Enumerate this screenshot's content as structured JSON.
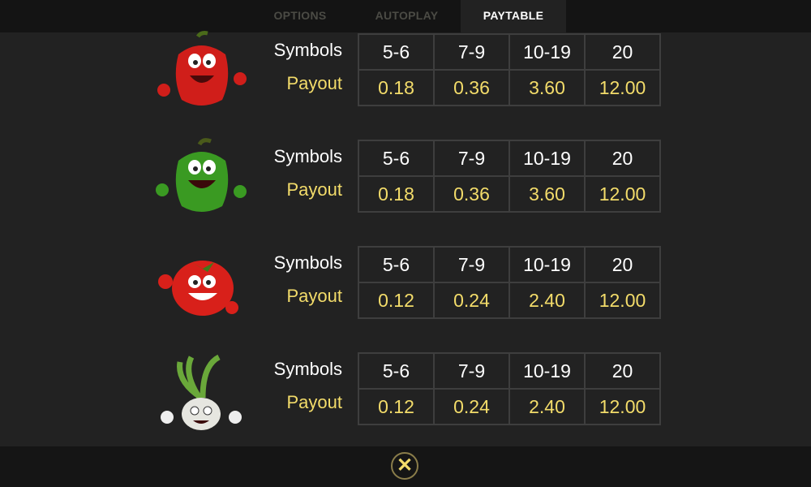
{
  "tabs": [
    {
      "label": "OPTIONS"
    },
    {
      "label": "AUTOPLAY"
    },
    {
      "label": "PAYTABLE",
      "active": true
    }
  ],
  "labels": {
    "symbols": "Symbols",
    "payout": "Payout"
  },
  "rows": [
    {
      "icon": "red-bell-pepper-icon",
      "symbols": [
        "5-6",
        "7-9",
        "10-19",
        "20"
      ],
      "payouts": [
        "0.18",
        "0.36",
        "3.60",
        "12.00"
      ]
    },
    {
      "icon": "green-bell-pepper-icon",
      "symbols": [
        "5-6",
        "7-9",
        "10-19",
        "20"
      ],
      "payouts": [
        "0.18",
        "0.36",
        "3.60",
        "12.00"
      ]
    },
    {
      "icon": "tomato-icon",
      "symbols": [
        "5-6",
        "7-9",
        "10-19",
        "20"
      ],
      "payouts": [
        "0.12",
        "0.24",
        "2.40",
        "12.00"
      ]
    },
    {
      "icon": "onion-icon",
      "symbols": [
        "5-6",
        "7-9",
        "10-19",
        "20"
      ],
      "payouts": [
        "0.12",
        "0.24",
        "2.40",
        "12.00"
      ]
    }
  ],
  "close": {
    "icon": "close-icon",
    "glyph": "✕"
  },
  "colors": {
    "accent": "#f3dc6a",
    "background": "#222222",
    "bar": "#141414"
  }
}
